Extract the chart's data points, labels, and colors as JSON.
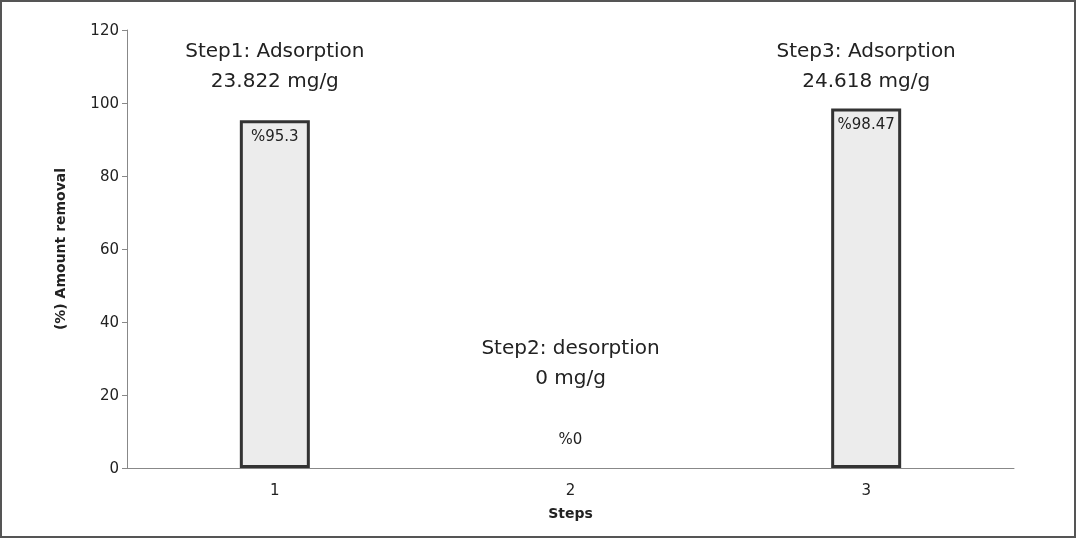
{
  "chart_data": {
    "type": "bar",
    "xlabel": "Steps",
    "ylabel": "(%) Amount removal",
    "categories": [
      "1",
      "2",
      "3"
    ],
    "values": [
      95.3,
      0,
      98.47
    ],
    "value_labels": [
      "%95.3",
      "%0",
      "%98.47"
    ],
    "color": "#ececec",
    "ylim": [
      0,
      120
    ],
    "yticks": [
      0,
      20,
      40,
      60,
      80,
      100,
      120
    ],
    "grid": false,
    "annotations": [
      "Step1: Adsorption\n23.822 mg/g",
      "Step2: desorption\n0 mg/g",
      "Step3: Adsorption\n24.618 mg/g"
    ]
  }
}
